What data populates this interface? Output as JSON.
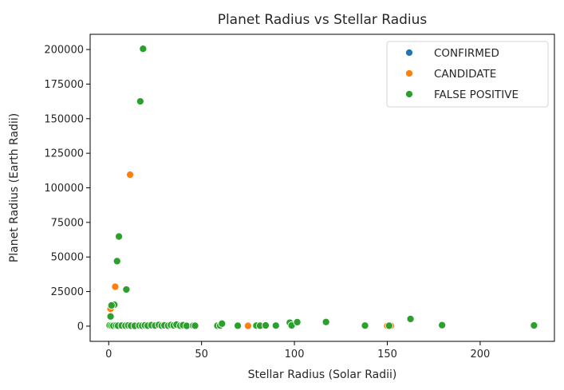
{
  "chart_data": {
    "type": "scatter",
    "title": "Planet Radius vs Stellar Radius",
    "xlabel": "Stellar Radius (Solar Radii)",
    "ylabel": "Planet Radius (Earth Radii)",
    "xlim": [
      -10,
      240
    ],
    "ylim": [
      -11000,
      211000
    ],
    "xticks": [
      0,
      50,
      100,
      150,
      200
    ],
    "yticks": [
      0,
      25000,
      50000,
      75000,
      100000,
      125000,
      150000,
      175000,
      200000
    ],
    "grid": false,
    "legend_position": "top-right",
    "series": [
      {
        "name": "CONFIRMED",
        "color": "#1f77b4",
        "points": []
      },
      {
        "name": "CANDIDATE",
        "color": "#ff7f0e",
        "points": [
          {
            "x": 11.5,
            "y": 109500
          },
          {
            "x": 3.5,
            "y": 28500
          },
          {
            "x": 1.5,
            "y": 14000
          },
          {
            "x": 1.0,
            "y": 12500
          },
          {
            "x": 8.0,
            "y": 200
          },
          {
            "x": 15.0,
            "y": 200
          },
          {
            "x": 75.0,
            "y": 200
          },
          {
            "x": 150.0,
            "y": 200
          },
          {
            "x": 152.0,
            "y": 200
          },
          {
            "x": 1.2,
            "y": 200
          }
        ]
      },
      {
        "name": "FALSE POSITIVE",
        "color": "#2ca02c",
        "points": [
          {
            "x": 18.5,
            "y": 200500
          },
          {
            "x": 17.0,
            "y": 162500
          },
          {
            "x": 5.5,
            "y": 64800
          },
          {
            "x": 4.5,
            "y": 47000
          },
          {
            "x": 9.5,
            "y": 26500
          },
          {
            "x": 3.0,
            "y": 15500
          },
          {
            "x": 1.5,
            "y": 15000
          },
          {
            "x": 1.0,
            "y": 7000
          },
          {
            "x": 0.5,
            "y": 500
          },
          {
            "x": 1.5,
            "y": 300
          },
          {
            "x": 2.5,
            "y": 300
          },
          {
            "x": 4.0,
            "y": 500
          },
          {
            "x": 5.0,
            "y": 300
          },
          {
            "x": 7.0,
            "y": 400
          },
          {
            "x": 9.0,
            "y": 300
          },
          {
            "x": 10.5,
            "y": 500
          },
          {
            "x": 12.0,
            "y": 300
          },
          {
            "x": 14.0,
            "y": 200
          },
          {
            "x": 16.5,
            "y": 400
          },
          {
            "x": 18.0,
            "y": 300
          },
          {
            "x": 19.5,
            "y": 600
          },
          {
            "x": 21.0,
            "y": 300
          },
          {
            "x": 23.0,
            "y": 700
          },
          {
            "x": 25.0,
            "y": 400
          },
          {
            "x": 27.0,
            "y": 900
          },
          {
            "x": 28.5,
            "y": 300
          },
          {
            "x": 30.0,
            "y": 600
          },
          {
            "x": 32.0,
            "y": 300
          },
          {
            "x": 33.5,
            "y": 800
          },
          {
            "x": 35.0,
            "y": 500
          },
          {
            "x": 36.5,
            "y": 1100
          },
          {
            "x": 38.5,
            "y": 300
          },
          {
            "x": 40.0,
            "y": 700
          },
          {
            "x": 42.0,
            "y": 200
          },
          {
            "x": 45.5,
            "y": 400
          },
          {
            "x": 46.5,
            "y": 300
          },
          {
            "x": 58.5,
            "y": 300
          },
          {
            "x": 60.0,
            "y": 400
          },
          {
            "x": 61.0,
            "y": 1800
          },
          {
            "x": 69.5,
            "y": 300
          },
          {
            "x": 79.5,
            "y": 400
          },
          {
            "x": 81.5,
            "y": 300
          },
          {
            "x": 84.5,
            "y": 500
          },
          {
            "x": 90.0,
            "y": 400
          },
          {
            "x": 97.5,
            "y": 2500
          },
          {
            "x": 98.5,
            "y": 500
          },
          {
            "x": 101.5,
            "y": 2900
          },
          {
            "x": 117.0,
            "y": 3000
          },
          {
            "x": 138.0,
            "y": 400
          },
          {
            "x": 151.0,
            "y": 300
          },
          {
            "x": 162.5,
            "y": 5200
          },
          {
            "x": 179.5,
            "y": 700
          },
          {
            "x": 229.0,
            "y": 500
          }
        ]
      }
    ]
  }
}
